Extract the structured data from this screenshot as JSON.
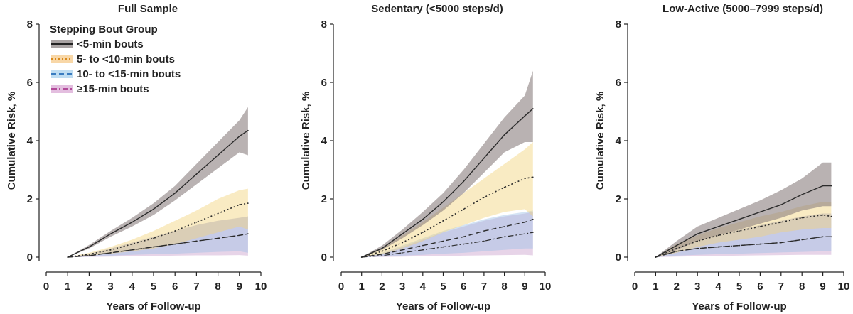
{
  "chart_data": [
    {
      "type": "line",
      "title": "Full Sample",
      "xlabel": "Years of Follow-up",
      "ylabel": "Cumulative Risk, %",
      "xlim": [
        0,
        10
      ],
      "ylim": [
        0,
        8
      ],
      "xticks": [
        "0",
        "1",
        "2",
        "3",
        "4",
        "5",
        "6",
        "7",
        "8",
        "9",
        "10"
      ],
      "yticks": [
        "0",
        "2",
        "4",
        "6",
        "8"
      ],
      "series": [
        {
          "name": "<5-min bouts",
          "x": [
            1,
            2,
            3,
            4,
            5,
            6,
            7,
            8,
            9,
            9.4
          ],
          "values": [
            0,
            0.35,
            0.8,
            1.2,
            1.65,
            2.2,
            2.85,
            3.5,
            4.15,
            4.35
          ],
          "lower": [
            0,
            0.3,
            0.7,
            1.05,
            1.45,
            1.95,
            2.5,
            3.05,
            3.6,
            3.5
          ],
          "upper": [
            0,
            0.42,
            0.9,
            1.35,
            1.85,
            2.45,
            3.2,
            3.95,
            4.7,
            5.15
          ]
        },
        {
          "name": "5- to <10-min bouts",
          "x": [
            1,
            2,
            3,
            4,
            5,
            6,
            7,
            8,
            9,
            9.4
          ],
          "values": [
            0,
            0.1,
            0.25,
            0.45,
            0.65,
            0.9,
            1.2,
            1.5,
            1.8,
            1.85
          ],
          "lower": [
            0,
            0.05,
            0.12,
            0.2,
            0.3,
            0.45,
            0.65,
            0.85,
            1.05,
            0.95
          ],
          "upper": [
            0,
            0.15,
            0.35,
            0.6,
            0.9,
            1.25,
            1.6,
            2.0,
            2.3,
            2.35
          ]
        },
        {
          "name": "10- to <15-min bouts",
          "x": [
            1,
            2,
            3,
            4,
            5,
            6,
            7,
            8,
            9,
            9.4
          ],
          "values": [
            0,
            0.05,
            0.15,
            0.25,
            0.35,
            0.45,
            0.55,
            0.65,
            0.75,
            0.8
          ],
          "lower": [
            0,
            0.02,
            0.05,
            0.08,
            0.1,
            0.12,
            0.15,
            0.18,
            0.2,
            0.15
          ],
          "upper": [
            0,
            0.12,
            0.3,
            0.5,
            0.7,
            0.9,
            1.1,
            1.25,
            1.35,
            1.4
          ]
        },
        {
          "name": "≥15-min bouts",
          "x": [
            1,
            2,
            3,
            4,
            5,
            6,
            7,
            8,
            9,
            9.4
          ],
          "values": [
            0,
            0.05,
            0.15,
            0.25,
            0.35,
            0.45,
            0.55,
            0.65,
            0.75,
            0.8
          ],
          "lower": [
            0,
            0.01,
            0.02,
            0.03,
            0.04,
            0.05,
            0.06,
            0.06,
            0.07,
            0.05
          ],
          "upper": [
            0,
            0.12,
            0.3,
            0.5,
            0.7,
            0.9,
            1.1,
            1.25,
            1.35,
            1.4
          ]
        }
      ]
    },
    {
      "type": "line",
      "title": "Sedentary (<5000 steps/d)",
      "xlabel": "Years of Follow-up",
      "ylabel": "Cumulative Risk, %",
      "xlim": [
        0,
        10
      ],
      "ylim": [
        0,
        8
      ],
      "xticks": [
        "0",
        "1",
        "2",
        "3",
        "4",
        "5",
        "6",
        "7",
        "8",
        "9",
        "10"
      ],
      "yticks": [
        "0",
        "2",
        "4",
        "6",
        "8"
      ],
      "series": [
        {
          "name": "<5-min bouts",
          "x": [
            1,
            2,
            3,
            4,
            5,
            6,
            7,
            8,
            9,
            9.4
          ],
          "values": [
            0,
            0.3,
            0.8,
            1.3,
            1.9,
            2.6,
            3.4,
            4.2,
            4.85,
            5.1
          ],
          "lower": [
            0,
            0.25,
            0.65,
            1.1,
            1.6,
            2.2,
            2.9,
            3.6,
            3.95,
            3.95
          ],
          "upper": [
            0,
            0.4,
            0.95,
            1.55,
            2.2,
            3.0,
            3.9,
            4.8,
            5.55,
            6.4
          ]
        },
        {
          "name": "5- to <10-min bouts",
          "x": [
            1,
            2,
            3,
            4,
            5,
            6,
            7,
            8,
            9,
            9.4
          ],
          "values": [
            0,
            0.2,
            0.5,
            0.85,
            1.25,
            1.65,
            2.05,
            2.4,
            2.7,
            2.75
          ],
          "lower": [
            0,
            0.1,
            0.3,
            0.55,
            0.85,
            1.1,
            1.35,
            1.55,
            1.65,
            1.4
          ],
          "upper": [
            0,
            0.3,
            0.75,
            1.2,
            1.7,
            2.2,
            2.7,
            3.2,
            3.7,
            3.95
          ]
        },
        {
          "name": "10- to <15-min bouts",
          "x": [
            1,
            2,
            3,
            4,
            5,
            6,
            7,
            8,
            9,
            9.4
          ],
          "values": [
            0,
            0.1,
            0.25,
            0.4,
            0.55,
            0.7,
            0.9,
            1.05,
            1.2,
            1.3
          ],
          "lower": [
            0,
            0.02,
            0.05,
            0.08,
            0.12,
            0.15,
            0.2,
            0.25,
            0.3,
            0.3
          ],
          "upper": [
            0,
            0.15,
            0.4,
            0.65,
            0.9,
            1.1,
            1.3,
            1.45,
            1.55,
            1.6
          ]
        },
        {
          "name": "≥15-min bouts",
          "x": [
            1,
            2,
            3,
            4,
            5,
            6,
            7,
            8,
            9,
            9.4
          ],
          "values": [
            0,
            0.05,
            0.15,
            0.25,
            0.35,
            0.45,
            0.55,
            0.7,
            0.8,
            0.85
          ],
          "lower": [
            0,
            0.01,
            0.02,
            0.03,
            0.04,
            0.05,
            0.06,
            0.07,
            0.08,
            0.06
          ],
          "upper": [
            0,
            0.12,
            0.35,
            0.6,
            0.85,
            1.05,
            1.25,
            1.4,
            1.5,
            1.55
          ]
        }
      ]
    },
    {
      "type": "line",
      "title": "Low-Active (5000–7999 steps/d)",
      "xlabel": "Years of Follow-up",
      "ylabel": "Cumulative Risk, %",
      "xlim": [
        0,
        10
      ],
      "ylim": [
        0,
        8
      ],
      "xticks": [
        "0",
        "1",
        "2",
        "3",
        "4",
        "5",
        "6",
        "7",
        "8",
        "9",
        "10"
      ],
      "yticks": [
        "0",
        "2",
        "4",
        "6",
        "8"
      ],
      "series": [
        {
          "name": "<5-min bouts",
          "x": [
            1,
            2,
            3,
            4,
            5,
            6,
            7,
            8,
            9,
            9.4
          ],
          "values": [
            0,
            0.4,
            0.8,
            1.05,
            1.3,
            1.55,
            1.8,
            2.15,
            2.45,
            2.45
          ],
          "lower": [
            0,
            0.25,
            0.55,
            0.75,
            0.95,
            1.15,
            1.35,
            1.6,
            1.75,
            1.75
          ],
          "upper": [
            0,
            0.55,
            1.05,
            1.35,
            1.65,
            1.95,
            2.3,
            2.7,
            3.25,
            3.25
          ]
        },
        {
          "name": "5- to <10-min bouts",
          "x": [
            1,
            2,
            3,
            4,
            5,
            6,
            7,
            8,
            9,
            9.4
          ],
          "values": [
            0,
            0.3,
            0.55,
            0.75,
            0.9,
            1.05,
            1.2,
            1.35,
            1.45,
            1.4
          ],
          "lower": [
            0,
            0.15,
            0.35,
            0.5,
            0.6,
            0.7,
            0.85,
            0.95,
            1.0,
            1.0
          ],
          "upper": [
            0,
            0.45,
            0.75,
            1.0,
            1.2,
            1.4,
            1.55,
            1.75,
            1.9,
            1.9
          ]
        },
        {
          "name": "10- to <15-min bouts",
          "x": [
            1,
            2,
            3,
            4,
            5,
            6,
            7,
            8,
            9,
            9.4
          ],
          "values": [
            0,
            0.2,
            0.3,
            0.35,
            0.4,
            0.45,
            0.5,
            0.6,
            0.7,
            0.7
          ],
          "lower": [
            0,
            0.05,
            0.08,
            0.1,
            0.12,
            0.14,
            0.16,
            0.18,
            0.2,
            0.2
          ],
          "upper": [
            0,
            0.3,
            0.55,
            0.75,
            0.95,
            1.1,
            1.25,
            1.4,
            1.5,
            1.5
          ]
        },
        {
          "name": "≥15-min bouts",
          "x": [
            1,
            2,
            3,
            4,
            5,
            6,
            7,
            8,
            9,
            9.4
          ],
          "values": [
            0,
            0.2,
            0.3,
            0.35,
            0.4,
            0.45,
            0.5,
            0.6,
            0.7,
            0.7
          ],
          "lower": [
            0,
            0.02,
            0.03,
            0.04,
            0.05,
            0.06,
            0.07,
            0.08,
            0.08,
            0.08
          ],
          "upper": [
            0,
            0.3,
            0.55,
            0.75,
            0.95,
            1.1,
            1.25,
            1.4,
            1.5,
            1.5
          ]
        }
      ]
    }
  ],
  "legend": {
    "title": "Stepping Bout Group",
    "items": [
      "<5-min bouts",
      "5- to <10-min bouts",
      "10- to <15-min bouts",
      "≥15-min bouts"
    ]
  },
  "colors": {
    "band": [
      "#8a7e7e",
      "#f2d27a",
      "#9ec2e6",
      "#c9a0cc"
    ],
    "line": [
      "#2b2b2b",
      "#2b2b2b",
      "#2b2b2b",
      "#2b2b2b"
    ],
    "legend_fill": [
      "#8c8484",
      "#f5c98a",
      "#a9d1ee",
      "#d9a8d4"
    ],
    "legend_line": [
      "#222222",
      "#d98a1c",
      "#3a7cc0",
      "#b24a9a"
    ],
    "axis": "#222222"
  }
}
